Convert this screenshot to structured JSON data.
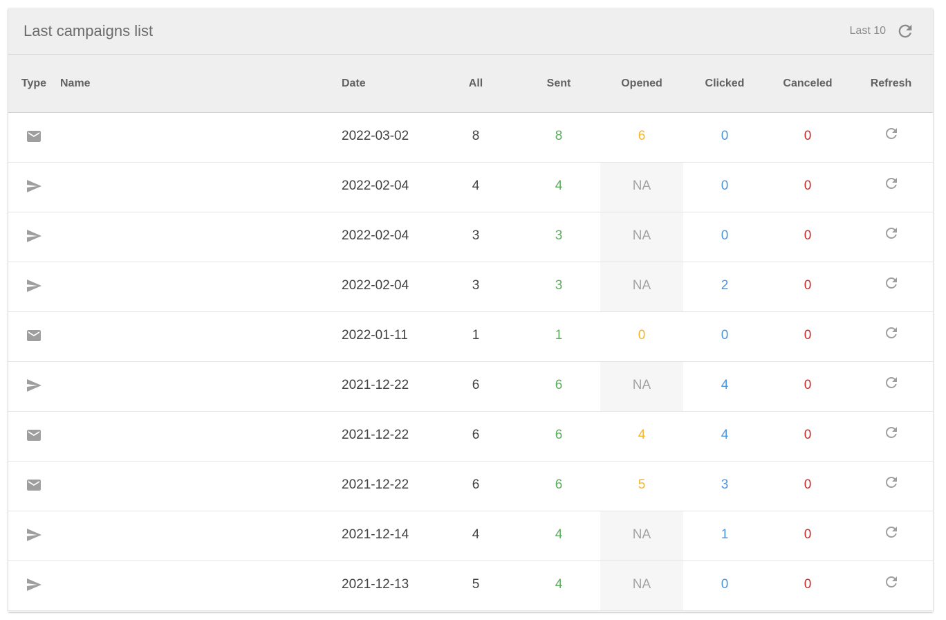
{
  "header": {
    "title": "Last campaigns list",
    "last_label": "Last 10",
    "refresh_icon": "refresh-icon"
  },
  "columns": {
    "type": "Type",
    "name": "Name",
    "date": "Date",
    "all": "All",
    "sent": "Sent",
    "opened": "Opened",
    "clicked": "Clicked",
    "canceled": "Canceled",
    "refresh": "Refresh"
  },
  "colors": {
    "sent": "#5cad5c",
    "opened": "#f5b62a",
    "clicked": "#4a97e2",
    "canceled": "#d02b2b",
    "na": "#a3a3a3"
  },
  "rows": [
    {
      "type": "email",
      "icon": "envelope-icon",
      "name": "",
      "date": "2022-03-02",
      "all": "8",
      "sent": "8",
      "opened": "6",
      "clicked": "0",
      "canceled": "0"
    },
    {
      "type": "sms",
      "icon": "send-icon",
      "name": "",
      "date": "2022-02-04",
      "all": "4",
      "sent": "4",
      "opened": "NA",
      "clicked": "0",
      "canceled": "0"
    },
    {
      "type": "sms",
      "icon": "send-icon",
      "name": "",
      "date": "2022-02-04",
      "all": "3",
      "sent": "3",
      "opened": "NA",
      "clicked": "0",
      "canceled": "0"
    },
    {
      "type": "sms",
      "icon": "send-icon",
      "name": "",
      "date": "2022-02-04",
      "all": "3",
      "sent": "3",
      "opened": "NA",
      "clicked": "2",
      "canceled": "0"
    },
    {
      "type": "email",
      "icon": "envelope-icon",
      "name": "",
      "date": "2022-01-11",
      "all": "1",
      "sent": "1",
      "opened": "0",
      "clicked": "0",
      "canceled": "0"
    },
    {
      "type": "sms",
      "icon": "send-icon",
      "name": "",
      "date": "2021-12-22",
      "all": "6",
      "sent": "6",
      "opened": "NA",
      "clicked": "4",
      "canceled": "0"
    },
    {
      "type": "email",
      "icon": "envelope-icon",
      "name": "",
      "date": "2021-12-22",
      "all": "6",
      "sent": "6",
      "opened": "4",
      "clicked": "4",
      "canceled": "0"
    },
    {
      "type": "email",
      "icon": "envelope-icon",
      "name": "",
      "date": "2021-12-22",
      "all": "6",
      "sent": "6",
      "opened": "5",
      "clicked": "3",
      "canceled": "0"
    },
    {
      "type": "sms",
      "icon": "send-icon",
      "name": "",
      "date": "2021-12-14",
      "all": "4",
      "sent": "4",
      "opened": "NA",
      "clicked": "1",
      "canceled": "0"
    },
    {
      "type": "sms",
      "icon": "send-icon",
      "name": "",
      "date": "2021-12-13",
      "all": "5",
      "sent": "4",
      "opened": "NA",
      "clicked": "0",
      "canceled": "0"
    }
  ]
}
